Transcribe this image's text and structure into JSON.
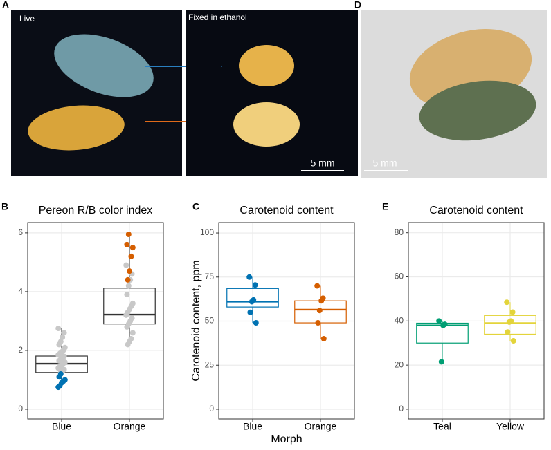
{
  "photos": {
    "panel_a": "A",
    "panel_d": "D",
    "live": "Live",
    "fixed": "Fixed in ethanol",
    "scale_a": "5 mm",
    "scale_d": "5 mm"
  },
  "chart_data": [
    {
      "type": "box",
      "panel": "B",
      "title": "Pereon R/B color index",
      "categories": [
        "Blue",
        "Orange"
      ],
      "ylim": [
        -0.33,
        6.35
      ],
      "yticks": [
        0,
        2,
        4,
        6
      ],
      "grid": true,
      "boxes": [
        {
          "color": "#333333",
          "low": 0.82,
          "q1": 1.25,
          "median": 1.55,
          "q3": 1.81,
          "high": 2.75
        },
        {
          "color": "#333333",
          "low": 2.2,
          "q1": 2.9,
          "median": 3.22,
          "q3": 4.12,
          "high": 5.95
        }
      ],
      "points": [
        [
          {
            "color": "#c8c8c8",
            "values": [
              2.75,
              2.6,
              2.45,
              2.3,
              2.2,
              2.1,
              2.0,
              1.95,
              1.9,
              1.85,
              1.8,
              1.75,
              1.7,
              1.65,
              1.6,
              1.55,
              1.5,
              1.45,
              1.4,
              1.35,
              1.3,
              1.25
            ]
          },
          {
            "color": "#0072b2",
            "values": [
              1.2,
              1.1,
              1.0,
              0.95,
              0.9,
              0.8,
              0.75
            ]
          }
        ],
        [
          {
            "color": "#c8c8c8",
            "values": [
              4.9,
              4.6,
              4.4,
              4.2,
              3.9,
              3.6,
              3.5,
              3.4,
              3.3,
              3.2,
              3.1,
              3.0,
              2.9,
              2.8,
              2.6,
              2.4,
              2.3,
              2.2
            ]
          },
          {
            "color": "#d55e00",
            "values": [
              5.95,
              5.6,
              5.5,
              5.2,
              4.7,
              4.4
            ]
          }
        ]
      ]
    },
    {
      "type": "box",
      "panel": "C",
      "title": "Carotenoid content",
      "x_label": "Morph",
      "y_label": "Carotenoid content, ppm",
      "categories": [
        "Blue",
        "Orange"
      ],
      "ylim": [
        -5.5,
        105.9
      ],
      "yticks": [
        0,
        25,
        50,
        75,
        100
      ],
      "grid": true,
      "boxes": [
        {
          "color": "#0072b2",
          "low": 49,
          "q1": 58,
          "median": 61,
          "q3": 68.5,
          "high": 75
        },
        {
          "color": "#d55e00",
          "low": 40,
          "q1": 49,
          "median": 56.5,
          "q3": 61.5,
          "high": 70
        }
      ],
      "points": [
        [
          {
            "color": "#0072b2",
            "values": [
              75,
              70.5,
              62,
              61,
              55,
              49
            ]
          }
        ],
        [
          {
            "color": "#d55e00",
            "values": [
              70,
              63,
              61.5,
              56,
              49,
              40
            ]
          }
        ]
      ]
    },
    {
      "type": "box",
      "panel": "E",
      "title": "Carotenoid content",
      "categories": [
        "Teal",
        "Yellow"
      ],
      "ylim": [
        -4.4,
        84.6
      ],
      "yticks": [
        0,
        20,
        40,
        60,
        80
      ],
      "grid": true,
      "boxes": [
        {
          "color": "#009e73",
          "low": 21.5,
          "q1": 30,
          "median": 38,
          "q3": 39,
          "high": 40
        },
        {
          "color": "#e3d43a",
          "low": 31,
          "q1": 34,
          "median": 39,
          "q3": 42.5,
          "high": 48.5
        }
      ],
      "points": [
        [
          {
            "color": "#009e73",
            "values": [
              40,
              38.5,
              38,
              21.5
            ]
          }
        ],
        [
          {
            "color": "#e3d43a",
            "values": [
              48.5,
              44,
              40,
              39.5,
              35,
              31
            ]
          }
        ]
      ]
    }
  ]
}
